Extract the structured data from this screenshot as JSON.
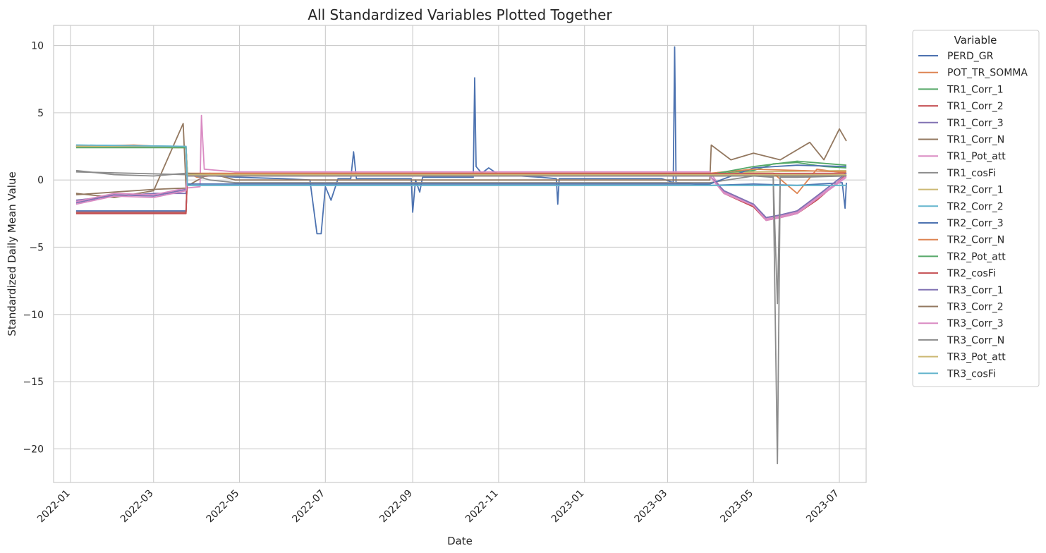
{
  "chart_data": {
    "type": "line",
    "title": "All Standardized Variables Plotted Together",
    "xlabel": "Date",
    "ylabel": "Standardized Daily Mean Value",
    "x_range": [
      "2021-12-20",
      "2023-07-20"
    ],
    "ylim": [
      -22.5,
      11.5
    ],
    "grid": true,
    "x_ticks": [
      "2022-01",
      "2022-03",
      "2022-05",
      "2022-07",
      "2022-09",
      "2022-11",
      "2023-01",
      "2023-03",
      "2023-05",
      "2023-07"
    ],
    "y_ticks": [
      10,
      5,
      0,
      -5,
      -10,
      -15,
      -20
    ],
    "y_tick_labels": [
      "10",
      "5",
      "0",
      "−5",
      "−10",
      "−15",
      "−20"
    ],
    "legend": {
      "title": "Variable",
      "position": "outside-right"
    },
    "series": [
      {
        "name": "PERD_GR",
        "color": "#4c72b0",
        "points": [
          [
            "2022-01-05",
            -2.3
          ],
          [
            "2022-03-24",
            -2.3
          ],
          [
            "2022-03-25",
            0.4
          ],
          [
            "2022-05-01",
            0.2
          ],
          [
            "2022-06-01",
            0.1
          ],
          [
            "2022-06-20",
            0.0
          ],
          [
            "2022-06-25",
            -4.0
          ],
          [
            "2022-06-28",
            -4.0
          ],
          [
            "2022-07-01",
            -0.5
          ],
          [
            "2022-07-05",
            -1.5
          ],
          [
            "2022-07-10",
            0.1
          ],
          [
            "2022-07-19",
            0.1
          ],
          [
            "2022-07-21",
            2.1
          ],
          [
            "2022-07-23",
            0.1
          ],
          [
            "2022-08-31",
            0.1
          ],
          [
            "2022-09-01",
            -2.4
          ],
          [
            "2022-09-03",
            0.0
          ],
          [
            "2022-09-06",
            -0.9
          ],
          [
            "2022-09-08",
            0.2
          ],
          [
            "2022-10-14",
            0.2
          ],
          [
            "2022-10-15",
            7.6
          ],
          [
            "2022-10-16",
            1.0
          ],
          [
            "2022-10-20",
            0.5
          ],
          [
            "2022-10-25",
            0.9
          ],
          [
            "2022-11-01",
            0.4
          ],
          [
            "2022-12-01",
            0.2
          ],
          [
            "2022-12-12",
            0.1
          ],
          [
            "2022-12-13",
            -1.8
          ],
          [
            "2022-12-14",
            0.1
          ],
          [
            "2023-02-25",
            0.1
          ],
          [
            "2023-03-05",
            -0.2
          ],
          [
            "2023-03-06",
            9.9
          ],
          [
            "2023-03-07",
            -0.2
          ],
          [
            "2023-04-01",
            -0.4
          ],
          [
            "2023-05-01",
            -0.3
          ],
          [
            "2023-06-01",
            -0.4
          ],
          [
            "2023-07-03",
            -0.2
          ],
          [
            "2023-07-05",
            -2.1
          ],
          [
            "2023-07-06",
            -0.2
          ]
        ]
      },
      {
        "name": "POT_TR_SOMMA",
        "color": "#dd8452",
        "points": [
          [
            "2022-01-05",
            2.5
          ],
          [
            "2022-03-24",
            2.4
          ],
          [
            "2022-03-25",
            0.5
          ],
          [
            "2022-04-01",
            0.2
          ],
          [
            "2022-04-28",
            0.5
          ],
          [
            "2023-03-31",
            0.5
          ],
          [
            "2023-04-15",
            0.5
          ],
          [
            "2023-05-01",
            0.5
          ],
          [
            "2023-05-15",
            0.5
          ],
          [
            "2023-06-01",
            -1.0
          ],
          [
            "2023-06-15",
            0.8
          ],
          [
            "2023-07-06",
            0.5
          ]
        ]
      },
      {
        "name": "TR1_Corr_1",
        "color": "#55a868",
        "points": [
          [
            "2022-01-05",
            -2.4
          ],
          [
            "2022-03-24",
            -2.4
          ],
          [
            "2022-03-25",
            0.4
          ],
          [
            "2023-03-31",
            0.4
          ],
          [
            "2023-04-20",
            0.6
          ],
          [
            "2023-05-01",
            0.7
          ],
          [
            "2023-05-15",
            1.2
          ],
          [
            "2023-06-01",
            1.3
          ],
          [
            "2023-06-20",
            1.0
          ],
          [
            "2023-07-06",
            0.9
          ]
        ]
      },
      {
        "name": "TR1_Corr_2",
        "color": "#c44e52",
        "points": [
          [
            "2022-01-05",
            -2.5
          ],
          [
            "2022-03-24",
            -2.5
          ],
          [
            "2022-03-25",
            0.3
          ],
          [
            "2023-03-31",
            0.3
          ],
          [
            "2023-04-10",
            -1.0
          ],
          [
            "2023-05-01",
            -2.0
          ],
          [
            "2023-05-10",
            -3.0
          ],
          [
            "2023-05-20",
            -2.8
          ],
          [
            "2023-06-01",
            -2.5
          ],
          [
            "2023-06-15",
            -1.5
          ],
          [
            "2023-07-06",
            0.4
          ]
        ]
      },
      {
        "name": "TR1_Corr_3",
        "color": "#8172b3",
        "points": [
          [
            "2022-01-05",
            -1.5
          ],
          [
            "2022-02-01",
            -1.2
          ],
          [
            "2022-03-01",
            -1.0
          ],
          [
            "2022-03-24",
            -1.0
          ],
          [
            "2022-03-25",
            0.3
          ],
          [
            "2023-03-31",
            0.3
          ],
          [
            "2023-04-10",
            -0.8
          ],
          [
            "2023-05-01",
            -1.8
          ],
          [
            "2023-05-10",
            -2.8
          ],
          [
            "2023-05-20",
            -2.6
          ],
          [
            "2023-06-01",
            -2.3
          ],
          [
            "2023-06-15",
            -1.2
          ],
          [
            "2023-07-06",
            0.5
          ]
        ]
      },
      {
        "name": "TR1_Corr_N",
        "color": "#937860",
        "points": [
          [
            "2022-01-05",
            -1.0
          ],
          [
            "2022-02-01",
            -1.3
          ],
          [
            "2022-03-01",
            -0.8
          ],
          [
            "2022-03-22",
            4.2
          ],
          [
            "2022-03-24",
            -0.5
          ],
          [
            "2022-04-10",
            0.5
          ],
          [
            "2022-04-28",
            0.0
          ],
          [
            "2023-03-31",
            0.0
          ],
          [
            "2023-04-01",
            2.6
          ],
          [
            "2023-04-15",
            1.5
          ],
          [
            "2023-05-01",
            2.0
          ],
          [
            "2023-05-20",
            1.5
          ],
          [
            "2023-06-10",
            2.8
          ],
          [
            "2023-06-20",
            1.5
          ],
          [
            "2023-07-01",
            3.8
          ],
          [
            "2023-07-06",
            2.9
          ]
        ]
      },
      {
        "name": "TR1_Pot_att",
        "color": "#da8bc3",
        "points": [
          [
            "2022-01-05",
            -1.6
          ],
          [
            "2022-02-01",
            -1.0
          ],
          [
            "2022-03-01",
            -1.1
          ],
          [
            "2022-03-24",
            -0.6
          ],
          [
            "2022-04-03",
            -0.5
          ],
          [
            "2022-04-04",
            4.8
          ],
          [
            "2022-04-06",
            0.8
          ],
          [
            "2022-04-28",
            0.6
          ],
          [
            "2023-03-31",
            0.6
          ],
          [
            "2023-04-10",
            -0.9
          ],
          [
            "2023-05-01",
            -1.8
          ],
          [
            "2023-05-10",
            -2.9
          ],
          [
            "2023-05-20",
            -2.7
          ],
          [
            "2023-06-01",
            -2.4
          ],
          [
            "2023-06-15",
            -1.3
          ],
          [
            "2023-07-06",
            0.3
          ]
        ]
      },
      {
        "name": "TR1_cosFi",
        "color": "#8c8c8c",
        "points": [
          [
            "2022-01-05",
            0.7
          ],
          [
            "2022-02-01",
            0.4
          ],
          [
            "2022-03-01",
            0.3
          ],
          [
            "2022-03-24",
            0.5
          ],
          [
            "2022-04-10",
            0.0
          ],
          [
            "2022-04-28",
            -0.2
          ],
          [
            "2023-03-31",
            -0.2
          ],
          [
            "2023-05-01",
            0.3
          ],
          [
            "2023-05-15",
            0.2
          ],
          [
            "2023-05-18",
            -21.1
          ],
          [
            "2023-05-20",
            0.2
          ],
          [
            "2023-06-01",
            0.2
          ],
          [
            "2023-07-06",
            0.3
          ]
        ]
      },
      {
        "name": "TR2_Corr_1",
        "color": "#ccb974",
        "points": [
          [
            "2022-01-05",
            2.5
          ],
          [
            "2022-03-24",
            2.4
          ],
          [
            "2022-03-25",
            0.4
          ],
          [
            "2023-03-31",
            0.4
          ],
          [
            "2023-05-01",
            0.6
          ],
          [
            "2023-07-06",
            0.7
          ]
        ]
      },
      {
        "name": "TR2_Corr_2",
        "color": "#64b5cd",
        "points": [
          [
            "2022-01-05",
            2.6
          ],
          [
            "2022-03-24",
            2.5
          ],
          [
            "2022-03-25",
            -0.4
          ],
          [
            "2023-07-06",
            -0.4
          ]
        ]
      },
      {
        "name": "TR2_Corr_3",
        "color": "#4c72b0",
        "points": [
          [
            "2022-01-05",
            2.5
          ],
          [
            "2022-03-24",
            2.5
          ],
          [
            "2022-03-25",
            -0.3
          ],
          [
            "2023-03-31",
            -0.3
          ],
          [
            "2023-05-01",
            0.9
          ],
          [
            "2023-06-01",
            1.1
          ],
          [
            "2023-07-06",
            1.0
          ]
        ]
      },
      {
        "name": "TR2_Corr_N",
        "color": "#dd8452",
        "points": [
          [
            "2022-01-05",
            2.5
          ],
          [
            "2022-02-15",
            2.6
          ],
          [
            "2022-03-24",
            2.4
          ],
          [
            "2022-03-25",
            0.5
          ],
          [
            "2023-03-31",
            0.5
          ],
          [
            "2023-05-01",
            0.8
          ],
          [
            "2023-07-06",
            0.6
          ]
        ]
      },
      {
        "name": "TR2_Pot_att",
        "color": "#55a868",
        "points": [
          [
            "2022-01-05",
            2.4
          ],
          [
            "2022-03-24",
            2.4
          ],
          [
            "2022-03-25",
            0.4
          ],
          [
            "2023-03-31",
            0.4
          ],
          [
            "2023-05-01",
            1.0
          ],
          [
            "2023-06-01",
            1.4
          ],
          [
            "2023-07-06",
            1.1
          ]
        ]
      },
      {
        "name": "TR2_cosFi",
        "color": "#c44e52",
        "points": [
          [
            "2022-01-05",
            -2.4
          ],
          [
            "2022-03-24",
            -2.4
          ],
          [
            "2022-03-25",
            0.4
          ],
          [
            "2023-07-06",
            0.5
          ]
        ]
      },
      {
        "name": "TR3_Corr_1",
        "color": "#8172b3",
        "points": [
          [
            "2022-01-05",
            -1.7
          ],
          [
            "2022-02-01",
            -1.1
          ],
          [
            "2022-03-01",
            -1.2
          ],
          [
            "2022-03-24",
            -0.7
          ],
          [
            "2022-03-25",
            0.3
          ],
          [
            "2023-03-31",
            0.3
          ],
          [
            "2023-04-10",
            -0.8
          ],
          [
            "2023-05-01",
            -1.8
          ],
          [
            "2023-05-10",
            -2.8
          ],
          [
            "2023-05-20",
            -2.6
          ],
          [
            "2023-06-01",
            -2.3
          ],
          [
            "2023-06-15",
            -1.2
          ],
          [
            "2023-07-06",
            0.5
          ]
        ]
      },
      {
        "name": "TR3_Corr_2",
        "color": "#937860",
        "points": [
          [
            "2022-01-05",
            -1.1
          ],
          [
            "2022-02-01",
            -0.9
          ],
          [
            "2022-03-01",
            -0.7
          ],
          [
            "2022-03-24",
            -0.6
          ],
          [
            "2022-03-25",
            0.5
          ],
          [
            "2022-04-28",
            0.3
          ],
          [
            "2023-07-06",
            0.3
          ]
        ]
      },
      {
        "name": "TR3_Corr_3",
        "color": "#da8bc3",
        "points": [
          [
            "2022-01-05",
            -1.8
          ],
          [
            "2022-02-01",
            -1.2
          ],
          [
            "2022-03-01",
            -1.3
          ],
          [
            "2022-03-24",
            -0.8
          ],
          [
            "2022-03-25",
            0.3
          ],
          [
            "2023-03-31",
            0.3
          ],
          [
            "2023-04-10",
            -1.0
          ],
          [
            "2023-05-01",
            -1.9
          ],
          [
            "2023-05-10",
            -3.0
          ],
          [
            "2023-05-20",
            -2.8
          ],
          [
            "2023-06-01",
            -2.5
          ],
          [
            "2023-06-15",
            -1.4
          ],
          [
            "2023-07-06",
            0.2
          ]
        ]
      },
      {
        "name": "TR3_Corr_N",
        "color": "#8c8c8c",
        "points": [
          [
            "2022-01-05",
            0.6
          ],
          [
            "2022-03-24",
            0.4
          ],
          [
            "2022-03-25",
            0.3
          ],
          [
            "2023-05-15",
            0.3
          ],
          [
            "2023-05-18",
            -9.2
          ],
          [
            "2023-05-20",
            0.3
          ],
          [
            "2023-07-06",
            0.3
          ]
        ]
      },
      {
        "name": "TR3_Pot_att",
        "color": "#ccb974",
        "points": [
          [
            "2022-01-05",
            2.5
          ],
          [
            "2022-03-24",
            2.5
          ],
          [
            "2022-03-25",
            0.4
          ],
          [
            "2023-07-06",
            0.4
          ]
        ]
      },
      {
        "name": "TR3_cosFi",
        "color": "#64b5cd",
        "points": [
          [
            "2022-01-05",
            2.6
          ],
          [
            "2022-03-24",
            2.5
          ],
          [
            "2022-03-25",
            -0.4
          ],
          [
            "2023-07-06",
            -0.4
          ]
        ]
      }
    ]
  }
}
